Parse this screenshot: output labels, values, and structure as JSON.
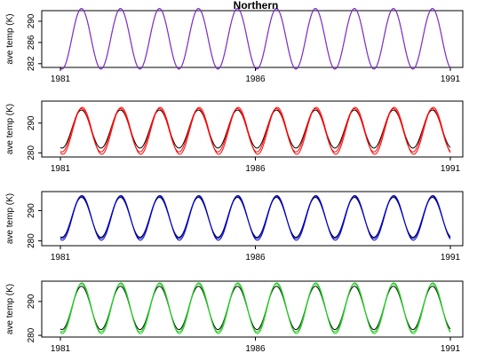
{
  "chart_data": [
    {
      "type": "line",
      "title": "Northern",
      "xlabel": "",
      "ylabel": "ave temp (K)",
      "xlim": [
        1981,
        1991
      ],
      "ylim": [
        281.3,
        292.0
      ],
      "x_ticks": [
        "1981",
        "1986",
        "1991"
      ],
      "y_ticks": [
        282,
        286,
        290
      ],
      "series": [
        {
          "color": "#000000",
          "mean": 286.7,
          "amplitude": 5.7,
          "period_years": 1,
          "peak_offset_years": 0.54
        },
        {
          "color": "#8a2be2",
          "mean": 286.7,
          "amplitude": 5.7,
          "period_years": 1,
          "peak_offset_years": 0.54
        }
      ]
    },
    {
      "type": "line",
      "title": "",
      "xlabel": "",
      "ylabel": "ave temp (K)",
      "xlim": [
        1981,
        1991
      ],
      "ylim": [
        278.6,
        297.4
      ],
      "x_ticks": [
        "1981",
        "1986",
        "1991"
      ],
      "y_ticks": [
        280,
        290
      ],
      "series": [
        {
          "color": "#000000",
          "mean": 288.0,
          "amplitude": 6.4,
          "period_years": 1,
          "peak_offset_years": 0.54
        },
        {
          "color": "#ff0000",
          "mean": 287.6,
          "amplitude": 7.3,
          "period_years": 1,
          "peak_offset_years": 0.54
        },
        {
          "color": "#ff0000",
          "mean": 287.4,
          "amplitude": 7.9,
          "period_years": 1,
          "peak_offset_years": 0.56
        }
      ]
    },
    {
      "type": "line",
      "title": "",
      "xlabel": "",
      "ylabel": "ave temp (K)",
      "xlim": [
        1981,
        1991
      ],
      "ylim": [
        278.4,
        296.3
      ],
      "x_ticks": [
        "1981",
        "1986",
        "1991"
      ],
      "y_ticks": [
        280,
        290
      ],
      "series": [
        {
          "color": "#000000",
          "mean": 287.8,
          "amplitude": 6.6,
          "period_years": 1,
          "peak_offset_years": 0.54
        },
        {
          "color": "#0000cd",
          "mean": 287.8,
          "amplitude": 7.0,
          "period_years": 1,
          "peak_offset_years": 0.54
        },
        {
          "color": "#0000cd",
          "mean": 287.6,
          "amplitude": 7.4,
          "period_years": 1,
          "peak_offset_years": 0.55
        }
      ]
    },
    {
      "type": "line",
      "title": "",
      "xlabel": "",
      "ylabel": "ave temp (K)",
      "xlim": [
        1981,
        1991
      ],
      "ylim": [
        279.5,
        296.0
      ],
      "x_ticks": [
        "1981",
        "1986",
        "1991"
      ],
      "y_ticks": [
        280,
        290
      ],
      "series": [
        {
          "color": "#000000",
          "mean": 288.1,
          "amplitude": 6.4,
          "period_years": 1,
          "peak_offset_years": 0.54
        },
        {
          "color": "#22cc22",
          "mean": 288.1,
          "amplitude": 7.1,
          "period_years": 1,
          "peak_offset_years": 0.54
        },
        {
          "color": "#22cc22",
          "mean": 288.0,
          "amplitude": 7.5,
          "period_years": 1,
          "peak_offset_years": 0.55
        }
      ]
    }
  ]
}
